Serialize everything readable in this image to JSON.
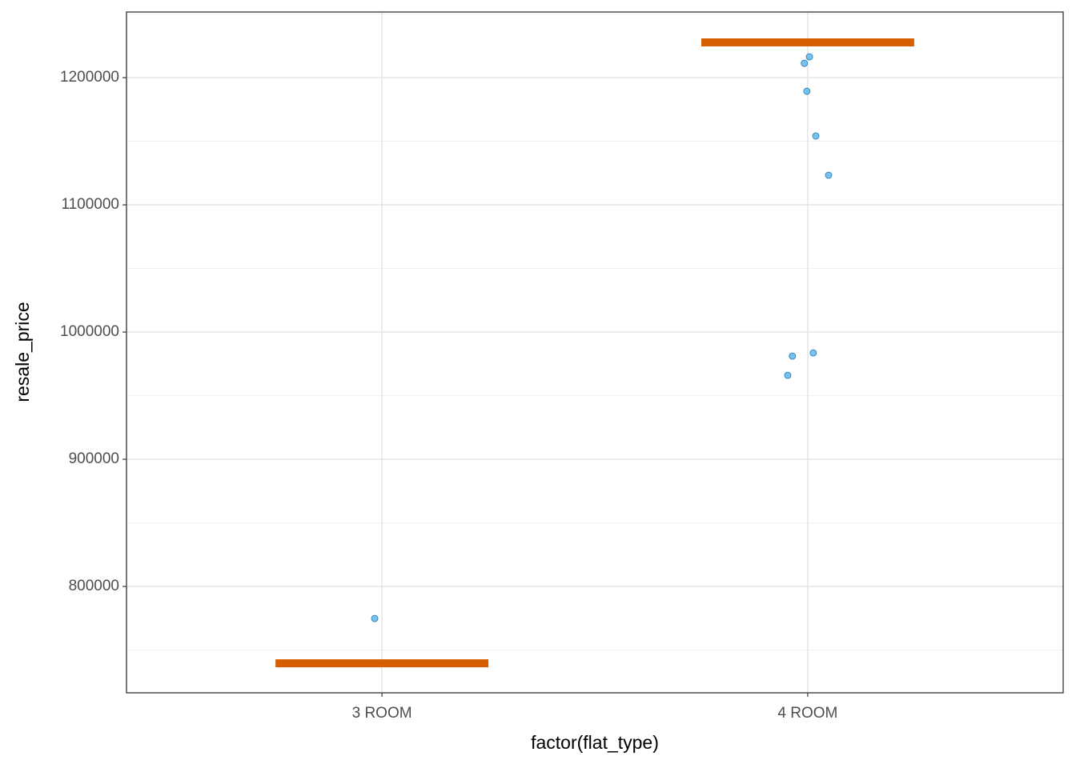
{
  "chart_data": {
    "type": "scatter",
    "x_label": "factor(flat_type)",
    "y_label": "resale_price",
    "xlim": [
      0.4,
      2.6
    ],
    "xticks": [
      {
        "value": 1,
        "label": "3 ROOM"
      },
      {
        "value": 2,
        "label": "4 ROOM"
      }
    ],
    "ylim": [
      716400,
      1251600
    ],
    "yticks": [
      800000,
      900000,
      1000000,
      1100000,
      1200000
    ],
    "grid": true,
    "points": {
      "color": "#56B4E9",
      "edge_color": "#1f78b4",
      "x": [
        0.983,
        2.004,
        1.992,
        1.998,
        2.019,
        2.049,
        1.964,
        2.013,
        1.953
      ],
      "values": [
        774800,
        1216400,
        1211300,
        1189300,
        1154100,
        1123300,
        981100,
        983600,
        966000
      ]
    },
    "summary": {
      "color": "#D55E00",
      "x": [
        1,
        2
      ],
      "values": [
        739600,
        1227700
      ]
    }
  }
}
